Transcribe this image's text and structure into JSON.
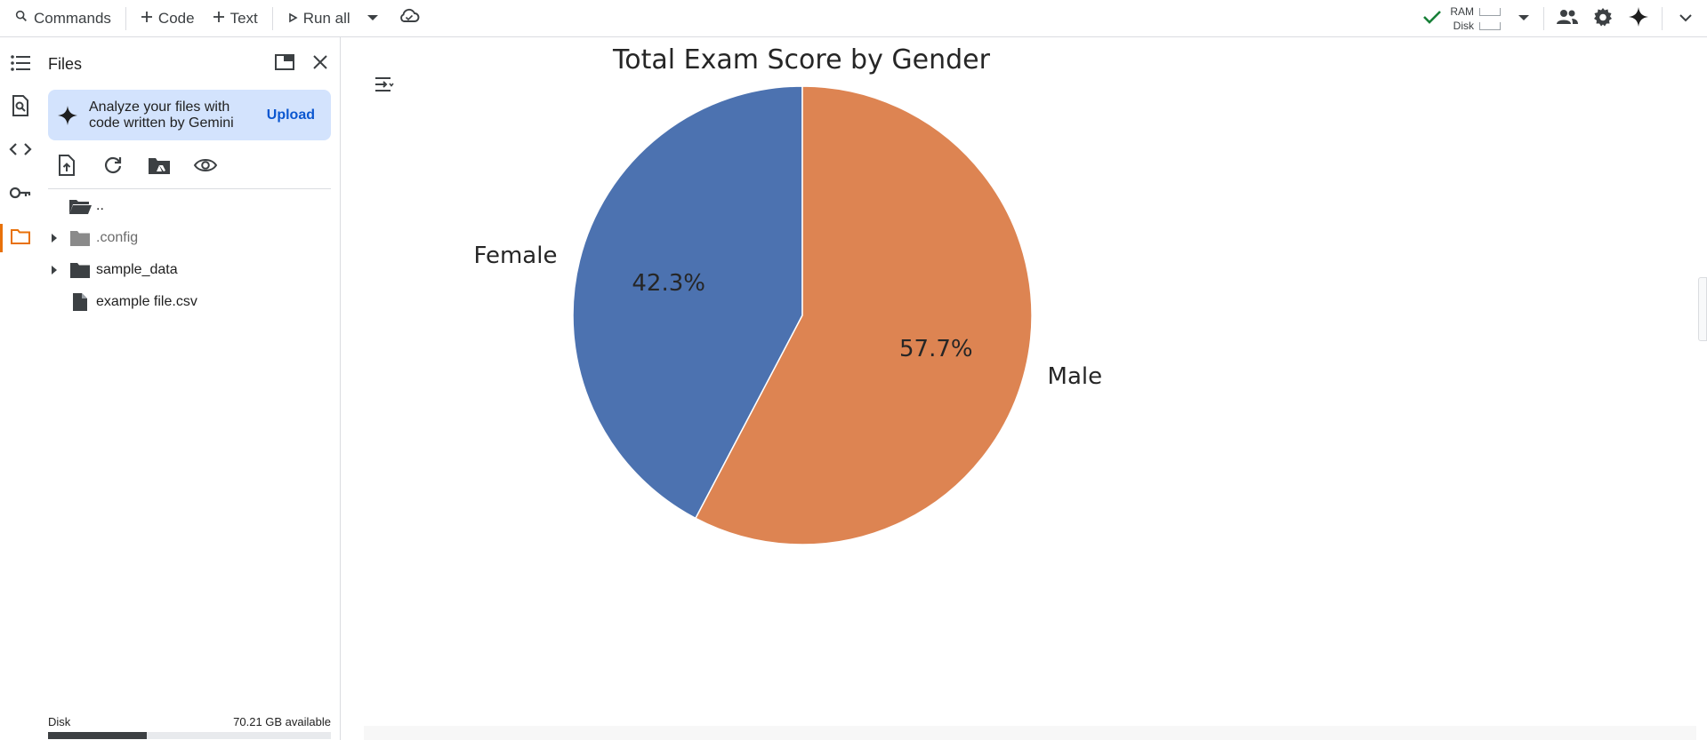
{
  "toolbar": {
    "commands": "Commands",
    "code": "Code",
    "text": "Text",
    "run_all": "Run all",
    "ram_label": "RAM",
    "disk_label": "Disk"
  },
  "rail": {
    "items": [
      "toc-icon",
      "find-replace-icon",
      "code-snippets-icon",
      "secrets-key-icon",
      "files-folder-icon"
    ],
    "active": "files-folder-icon"
  },
  "files_panel": {
    "title": "Files",
    "gemini_text": "Analyze your files with code written by Gemini",
    "upload": "Upload",
    "tree": [
      {
        "label": "..",
        "type": "folder-open",
        "expandable": false
      },
      {
        "label": ".config",
        "type": "folder-hidden",
        "expandable": true
      },
      {
        "label": "sample_data",
        "type": "folder",
        "expandable": true
      },
      {
        "label": "example file.csv",
        "type": "file",
        "expandable": false
      }
    ],
    "disk_label": "Disk",
    "disk_available": "70.21 GB available",
    "disk_used_fraction": 0.35
  },
  "colors": {
    "accent_orange": "#e8710a",
    "gemini_blue_bg": "#d3e3fd",
    "link_blue": "#0b57d0",
    "check_green": "#188038"
  },
  "chart_data": {
    "type": "pie",
    "title": "Total Exam Score by Gender",
    "slices": [
      {
        "label": "Female",
        "value": 42.3,
        "pct_label": "42.3%",
        "color": "#4c72b0"
      },
      {
        "label": "Male",
        "value": 57.7,
        "pct_label": "57.7%",
        "color": "#dd8452"
      }
    ],
    "start_angle_deg": 90,
    "direction": "counterclockwise"
  }
}
